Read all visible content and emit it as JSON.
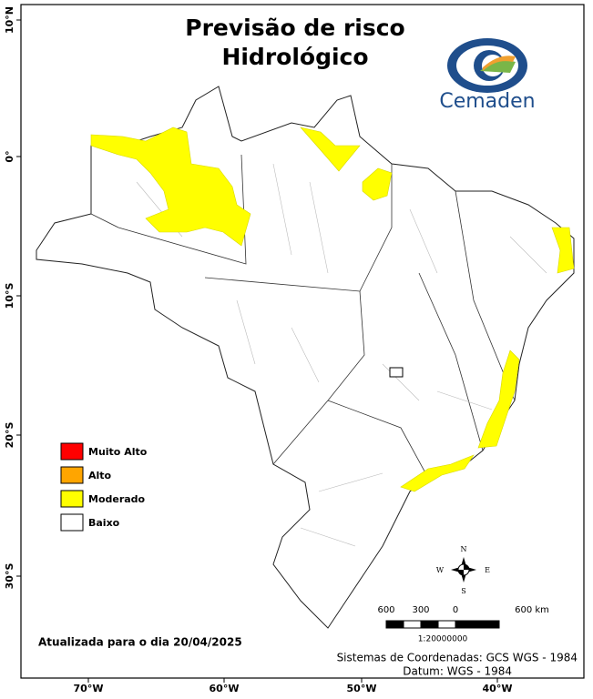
{
  "title_lines": [
    "Previsão de risco",
    "Hidrológico"
  ],
  "logo": {
    "name": "Cemaden"
  },
  "legend": [
    {
      "label": "Muito Alto",
      "color": "#ff0000"
    },
    {
      "label": "Alto",
      "color": "#ffa500"
    },
    {
      "label": "Moderado",
      "color": "#ffff00"
    },
    {
      "label": "Baixo",
      "color": "#ffffff"
    }
  ],
  "axes": {
    "left": [
      "10°N",
      "0°",
      "10°S",
      "20°S",
      "30°S"
    ],
    "bottom": [
      "70°W",
      "60°W",
      "50°W",
      "40°W"
    ]
  },
  "compass": {
    "n": "N",
    "e": "E",
    "s": "S",
    "w": "W"
  },
  "scale_bar": {
    "labels": [
      "600",
      "300",
      "0",
      "600 km"
    ],
    "ratio": "1:20000000"
  },
  "updated": "Atualizada para o dia 20/04/2025",
  "crs": [
    "Sistemas de Coordenadas: GCS WGS - 1984",
    "Datum: WGS - 1984"
  ]
}
